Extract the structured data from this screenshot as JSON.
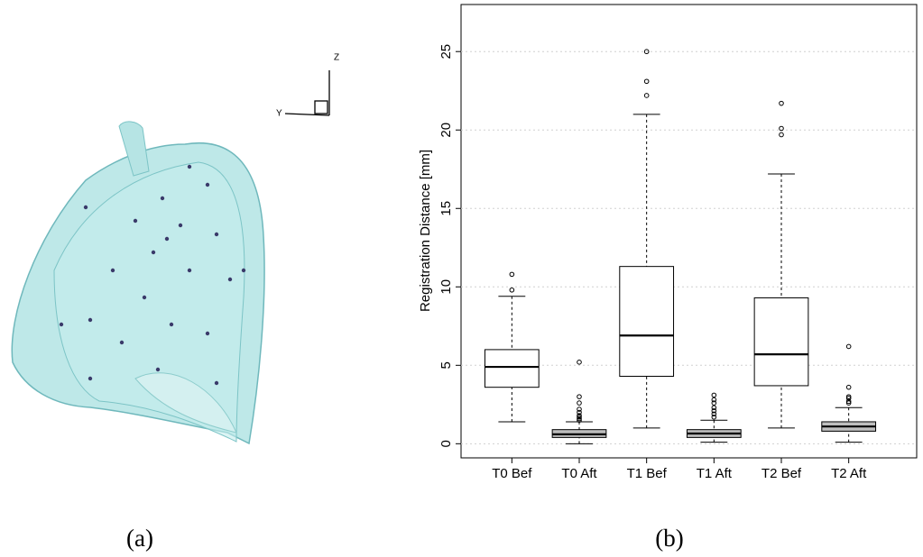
{
  "panel_a": {
    "axis_labels": [
      "Y",
      "Z"
    ],
    "caption": "(a)"
  },
  "chart_data": {
    "type": "box",
    "caption": "(b)",
    "y_label": "Registration Distance [mm]",
    "categories": [
      "T0 Bef",
      "T0 Aft",
      "T1 Bef",
      "T1 Aft",
      "T2 Bef",
      "T2 Aft"
    ],
    "colors": [
      "#ffffff",
      "#bebebe",
      "#ffffff",
      "#bebebe",
      "#ffffff",
      "#bebebe"
    ],
    "boxes": [
      {
        "low": 1.4,
        "q1": 3.6,
        "median": 4.9,
        "q3": 6.0,
        "high": 9.4,
        "outliers": [
          9.8,
          10.8
        ]
      },
      {
        "low": 0,
        "q1": 0.4,
        "median": 0.6,
        "q3": 0.9,
        "high": 1.4,
        "outliers": [
          1.5,
          1.6,
          1.7,
          1.8,
          2.0,
          2.2,
          2.6,
          3.0,
          5.2
        ]
      },
      {
        "low": 1.0,
        "q1": 4.3,
        "median": 6.9,
        "q3": 11.3,
        "high": 21.0,
        "outliers": [
          22.2,
          23.1,
          25.0
        ]
      },
      {
        "low": 0.1,
        "q1": 0.4,
        "median": 0.65,
        "q3": 0.9,
        "high": 1.5,
        "outliers": [
          1.7,
          1.9,
          2.1,
          2.3,
          2.6,
          2.8,
          3.1
        ]
      },
      {
        "low": 1.0,
        "q1": 3.7,
        "median": 5.7,
        "q3": 9.3,
        "high": 17.2,
        "outliers": [
          19.7,
          20.1,
          21.7
        ]
      },
      {
        "low": 0.1,
        "q1": 0.8,
        "median": 1.1,
        "q3": 1.4,
        "high": 2.3,
        "outliers": [
          2.6,
          2.7,
          2.9,
          3.0,
          3.6,
          6.2
        ]
      }
    ],
    "ylim": [
      -0.9,
      28
    ],
    "yticks": [
      0,
      5,
      10,
      15,
      20,
      25
    ],
    "grid": true
  }
}
